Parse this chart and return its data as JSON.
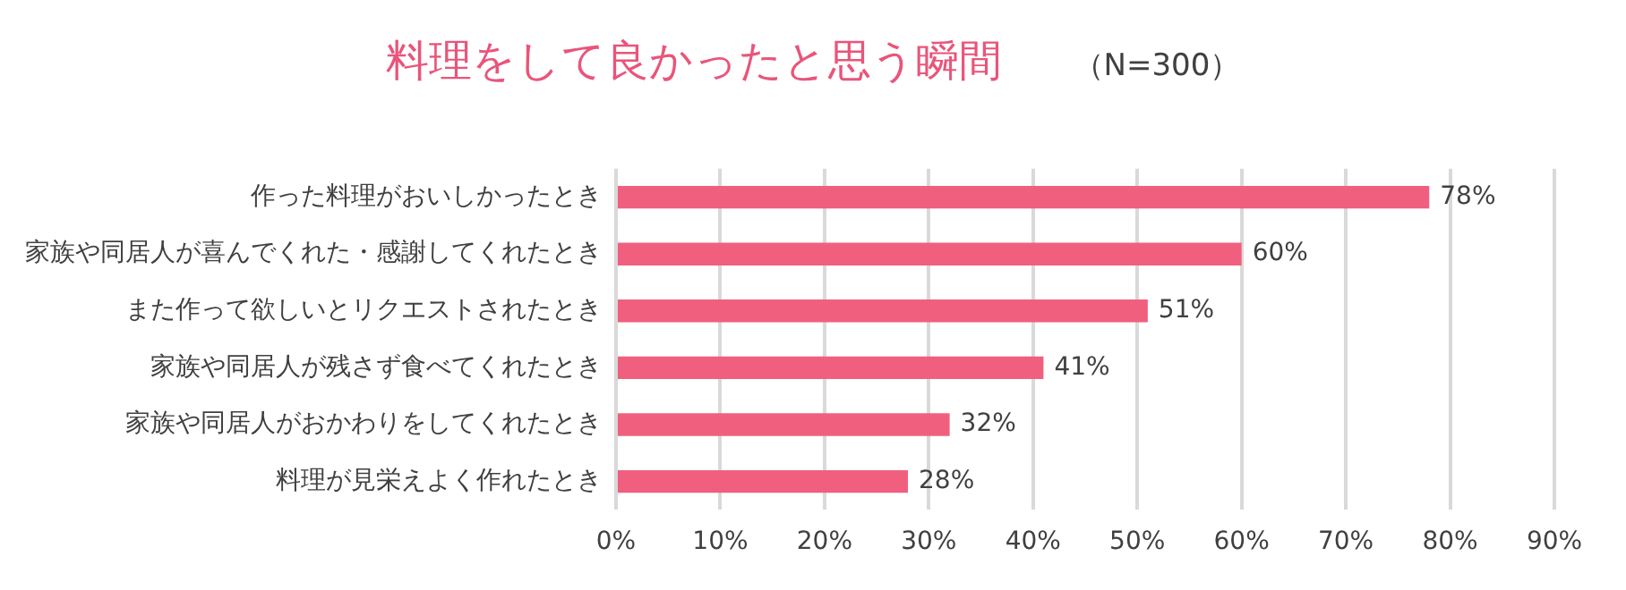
{
  "chart_data": {
    "type": "bar",
    "orientation": "horizontal",
    "title": "料理をして良かったと思う瞬間",
    "subtitle": "（N=300）",
    "categories": [
      "作った料理がおいしかったとき",
      "家族や同居人が喜んでくれた・感謝してくれたとき",
      "また作って欲しいとリクエストされたとき",
      "家族や同居人が残さず食べてくれたとき",
      "家族や同居人がおかわりをしてくれたとき",
      "料理が見栄えよく作れたとき"
    ],
    "values": [
      78,
      60,
      51,
      41,
      32,
      28
    ],
    "value_labels": [
      "78%",
      "60%",
      "51%",
      "41%",
      "32%",
      "28%"
    ],
    "color": "#f0607e",
    "xlim": [
      0,
      90
    ],
    "xticks": [
      {
        "value": 0,
        "label": "0%"
      },
      {
        "value": 10,
        "label": "10%"
      },
      {
        "value": 20,
        "label": "20%"
      },
      {
        "value": 30,
        "label": "30%"
      },
      {
        "value": 40,
        "label": "40%"
      },
      {
        "value": 50,
        "label": "50%"
      },
      {
        "value": 60,
        "label": "60%"
      },
      {
        "value": 70,
        "label": "70%"
      },
      {
        "value": 80,
        "label": "80%"
      },
      {
        "value": 90,
        "label": "90%"
      }
    ],
    "grid": "x",
    "legend": false
  }
}
